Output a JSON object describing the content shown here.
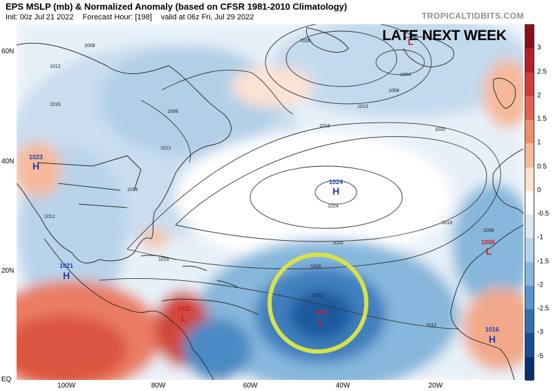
{
  "header": {
    "title": "EPS MSLP (mb) & Normalized Anomaly (based on CFSR 1981-2010 Climatology)",
    "init": "Init: 00z Jul 21 2022",
    "forecast_hour": "Forecast Hour: [198]",
    "valid": "valid at 06z Fri, Jul 29 2022",
    "site": "TROPICALTIDBITS.COM"
  },
  "banner": "LATE NEXT WEEK",
  "axes": {
    "lat_labels": [
      "60N",
      "40N",
      "20N",
      "EQ"
    ],
    "lon_labels": [
      "100W",
      "80W",
      "60W",
      "40W",
      "20W"
    ]
  },
  "pressure_centers": [
    {
      "type": "L",
      "value": "",
      "color": "#cc1f2a"
    },
    {
      "type": "H",
      "value": "1023",
      "color": "#1b3fb0"
    },
    {
      "type": "H",
      "value": "1024",
      "color": "#1b3fb0"
    },
    {
      "type": "L",
      "value": "1006",
      "color": "#cc1f2a"
    },
    {
      "type": "H",
      "value": "1021",
      "color": "#1b3fb0"
    },
    {
      "type": "L",
      "value": "1011",
      "color": "#cc1f2a"
    },
    {
      "type": "L",
      "value": "1011",
      "color": "#cc1f2a"
    },
    {
      "type": "H",
      "value": "1016",
      "color": "#1b3fb0"
    }
  ],
  "isobar_labels": [
    "1008",
    "1004",
    "1008",
    "1012",
    "1016",
    "1020",
    "1024",
    "1020",
    "1016",
    "1012",
    "1012",
    "1008",
    "1016",
    "1012",
    "1016",
    "1008",
    "1012",
    "1016",
    "1008",
    "1012",
    "1016"
  ],
  "colorbar": {
    "labels": [
      "3",
      "2.5",
      "2",
      "1.5",
      "1",
      "0.5",
      "0",
      "-0.5",
      "-1",
      "-1.5",
      "-2",
      "-2.5",
      "-3",
      "-5"
    ],
    "colors": [
      "#8e0d1d",
      "#b51f2b",
      "#d03b3b",
      "#e0624f",
      "#ee8f6e",
      "#f6b99b",
      "#fbe2d3",
      "#ffffff",
      "#dbe8f3",
      "#b6d3ea",
      "#86b7dc",
      "#5896c9",
      "#2f6fb0",
      "#154e94",
      "#0a2f6e"
    ]
  },
  "highlight": {
    "color": "#d7e24a"
  }
}
